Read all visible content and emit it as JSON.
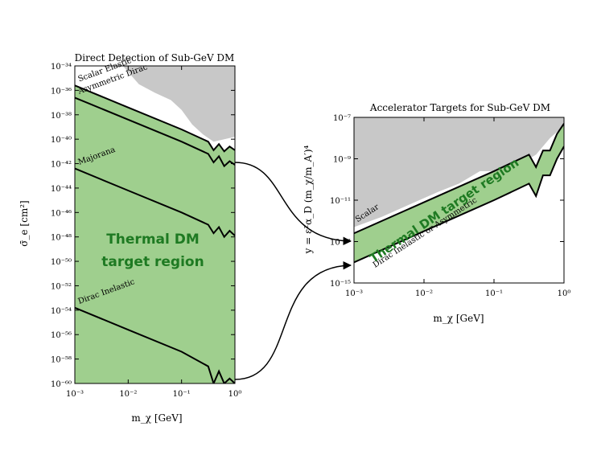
{
  "colors": {
    "excluded": "#c8c8c8",
    "band": "#9fcf8e",
    "band_text": "#1e7a22",
    "line": "#000000"
  },
  "chart_data": [
    {
      "type": "area",
      "title": "Direct Detection of Sub-GeV DM",
      "xlabel": "m_χ [GeV]",
      "ylabel": "σ̄_e [cm²]",
      "xscale": "log",
      "yscale": "log",
      "xlim": [
        0.001,
        1
      ],
      "ylim": [
        1e-60,
        1e-34
      ],
      "x_ticks": [
        {
          "value": -3,
          "label": "10⁻³"
        },
        {
          "value": -2,
          "label": "10⁻²"
        },
        {
          "value": -1,
          "label": "10⁻¹"
        },
        {
          "value": 0,
          "label": "10⁰"
        }
      ],
      "y_ticks": [
        {
          "value": -34,
          "label": "10⁻³⁴"
        },
        {
          "value": -36,
          "label": "10⁻³⁶"
        },
        {
          "value": -38,
          "label": "10⁻³⁸"
        },
        {
          "value": -40,
          "label": "10⁻⁴⁰"
        },
        {
          "value": -42,
          "label": "10⁻⁴²"
        },
        {
          "value": -44,
          "label": "10⁻⁴⁴"
        },
        {
          "value": -46,
          "label": "10⁻⁴⁶"
        },
        {
          "value": -48,
          "label": "10⁻⁴⁸"
        },
        {
          "value": -50,
          "label": "10⁻⁵⁰"
        },
        {
          "value": -52,
          "label": "10⁻⁵²"
        },
        {
          "value": -54,
          "label": "10⁻⁵⁴"
        },
        {
          "value": -56,
          "label": "10⁻⁵⁶"
        },
        {
          "value": -58,
          "label": "10⁻⁵⁸"
        },
        {
          "value": -60,
          "label": "10⁻⁶⁰"
        }
      ],
      "excluded_region_label": "",
      "band_label_line1": "Thermal DM",
      "band_label_line2": "target region",
      "series": [
        {
          "name": "Scalar Elastic",
          "log_x": [
            -3,
            -2,
            -1,
            -0.5,
            -0.4,
            -0.3,
            -0.2,
            -0.1,
            0
          ],
          "log_y": [
            -35.6,
            -37.4,
            -39.2,
            -40.2,
            -40.9,
            -40.4,
            -41.0,
            -40.6,
            -40.9
          ]
        },
        {
          "name": "Asymmetric Dirac",
          "log_x": [
            -3,
            -2,
            -1,
            -0.5,
            -0.4,
            -0.3,
            -0.2,
            -0.1,
            0
          ],
          "log_y": [
            -36.6,
            -38.4,
            -40.2,
            -41.2,
            -41.9,
            -41.4,
            -42.2,
            -41.8,
            -42.1
          ]
        },
        {
          "name": "Majorana",
          "log_x": [
            -3,
            -2,
            -1,
            -0.5,
            -0.4,
            -0.3,
            -0.2,
            -0.1,
            0
          ],
          "log_y": [
            -42.4,
            -44.2,
            -46.0,
            -47.0,
            -47.7,
            -47.2,
            -48.0,
            -47.5,
            -47.9
          ]
        },
        {
          "name": "Dirac Inelastic",
          "log_x": [
            -3,
            -2,
            -1,
            -0.5,
            -0.4,
            -0.3,
            -0.2,
            -0.1,
            0
          ],
          "log_y": [
            -53.8,
            -55.6,
            -57.4,
            -58.6,
            -60.0,
            -59.0,
            -60.0,
            -59.6,
            -60.0
          ]
        }
      ],
      "excluded_boundary": {
        "log_x": [
          -2.1,
          -1.8,
          -1.5,
          -1.2,
          -1.0,
          -0.8,
          -0.6,
          -0.4,
          -0.2,
          0
        ],
        "log_y": [
          -34.0,
          -35.5,
          -36.2,
          -36.8,
          -37.6,
          -38.8,
          -39.6,
          -40.2,
          -40.0,
          -39.8
        ]
      }
    },
    {
      "type": "area",
      "title": "Accelerator Targets for Sub-GeV DM",
      "xlabel": "m_χ [GeV]",
      "ylabel": "y = ε²α_D (m_χ/m_A′)⁴",
      "xscale": "log",
      "yscale": "log",
      "xlim": [
        0.001,
        1
      ],
      "ylim": [
        1e-15,
        1e-07
      ],
      "x_ticks": [
        {
          "value": -3,
          "label": "10⁻³"
        },
        {
          "value": -2,
          "label": "10⁻²"
        },
        {
          "value": -1,
          "label": "10⁻¹"
        },
        {
          "value": 0,
          "label": "10⁰"
        }
      ],
      "y_ticks": [
        {
          "value": -7,
          "label": "10⁻⁷"
        },
        {
          "value": -9,
          "label": "10⁻⁹"
        },
        {
          "value": -11,
          "label": "10⁻¹¹"
        },
        {
          "value": -13,
          "label": "10⁻¹³"
        },
        {
          "value": -15,
          "label": "10⁻¹⁵"
        }
      ],
      "band_label": "Thermal DM target region",
      "series": [
        {
          "name": "Scalar",
          "log_x": [
            -3,
            -2,
            -1,
            -0.5,
            -0.4,
            -0.3,
            -0.2,
            -0.1,
            0
          ],
          "log_y": [
            -12.6,
            -11.1,
            -9.6,
            -8.8,
            -9.4,
            -8.6,
            -8.6,
            -7.8,
            -7.3
          ]
        },
        {
          "name": "Dirac Inelastic or Asymmetric",
          "log_x": [
            -3,
            -2,
            -1,
            -0.5,
            -0.4,
            -0.3,
            -0.2,
            -0.1,
            0
          ],
          "log_y": [
            -14.0,
            -12.5,
            -11.0,
            -10.2,
            -10.8,
            -9.8,
            -9.8,
            -9.0,
            -8.4
          ]
        }
      ],
      "excluded_boundary": {
        "log_x": [
          -3,
          -2.6,
          -2.2,
          -1.8,
          -1.5,
          -1.2,
          -1.0,
          -0.8,
          -0.6,
          -0.4,
          -0.2,
          0
        ],
        "log_y": [
          -12.3,
          -11.8,
          -11.2,
          -10.6,
          -10.2,
          -9.6,
          -9.6,
          -9.8,
          -9.2,
          -8.8,
          -8.0,
          -7.4
        ]
      }
    }
  ]
}
